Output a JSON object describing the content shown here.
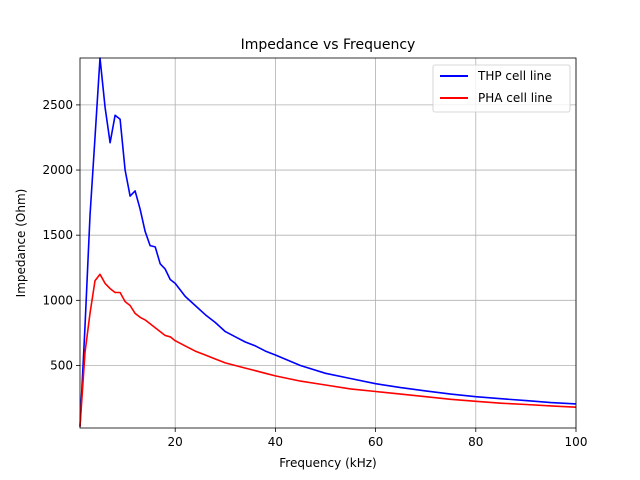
{
  "chart_data": {
    "type": "line",
    "title": "Impedance vs Frequency",
    "xlabel": "Frequency (kHz)",
    "ylabel": "Impedance (Ohm)",
    "xlim": [
      1,
      100
    ],
    "ylim": [
      20,
      2860
    ],
    "xticks": [
      20,
      40,
      60,
      80,
      100
    ],
    "yticks": [
      500,
      1000,
      1500,
      2000,
      2500
    ],
    "grid": true,
    "legend_position": "top-right",
    "series": [
      {
        "name": "THP cell line",
        "color": "#0000ff",
        "x": [
          1,
          2,
          3,
          4,
          5,
          6,
          7,
          8,
          9,
          10,
          11,
          12,
          13,
          14,
          15,
          16,
          17,
          18,
          19,
          20,
          22,
          24,
          26,
          28,
          30,
          32,
          34,
          36,
          38,
          40,
          45,
          50,
          55,
          60,
          65,
          70,
          75,
          80,
          85,
          90,
          95,
          100
        ],
        "y": [
          30,
          800,
          1650,
          2250,
          2860,
          2480,
          2210,
          2420,
          2390,
          2000,
          1800,
          1840,
          1700,
          1530,
          1420,
          1410,
          1280,
          1240,
          1160,
          1130,
          1030,
          960,
          890,
          830,
          760,
          720,
          680,
          650,
          610,
          580,
          500,
          440,
          400,
          360,
          330,
          305,
          280,
          260,
          245,
          230,
          215,
          205
        ]
      },
      {
        "name": "PHA cell line",
        "color": "#ff0000",
        "x": [
          1,
          2,
          3,
          4,
          5,
          6,
          7,
          8,
          9,
          10,
          11,
          12,
          13,
          14,
          15,
          16,
          17,
          18,
          19,
          20,
          22,
          24,
          26,
          28,
          30,
          32,
          34,
          36,
          38,
          40,
          45,
          50,
          55,
          60,
          65,
          70,
          75,
          80,
          85,
          90,
          95,
          100
        ],
        "y": [
          30,
          600,
          900,
          1150,
          1200,
          1130,
          1090,
          1060,
          1060,
          990,
          960,
          900,
          870,
          850,
          820,
          790,
          760,
          730,
          720,
          690,
          650,
          610,
          580,
          550,
          520,
          500,
          480,
          460,
          440,
          420,
          380,
          350,
          320,
          300,
          280,
          260,
          240,
          225,
          210,
          200,
          190,
          180
        ]
      }
    ]
  }
}
